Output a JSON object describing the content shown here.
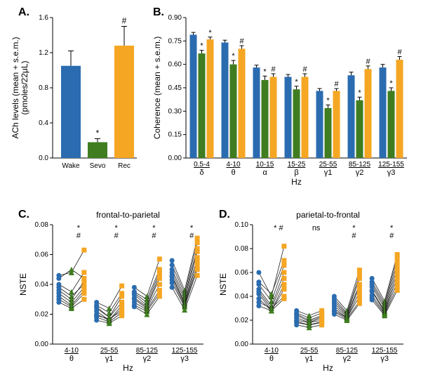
{
  "colors": {
    "wake": "#2b6cb0",
    "sevo": "#3f7d20",
    "rec": "#f5a623",
    "axis": "#000000",
    "bg": "#ffffff",
    "line": "#222222"
  },
  "font": {
    "panel": 16,
    "axis": 12,
    "tick": 10,
    "annot": 12
  },
  "panelA": {
    "label": "A.",
    "ylabel": "ACh levels (mean + s.e.m.)\n(pmoles/22μL)",
    "ylim": [
      0,
      1.6
    ],
    "ytick_step": 0.4,
    "categories": [
      "Wake",
      "Sevo",
      "Rec"
    ],
    "values": [
      1.05,
      0.18,
      1.28
    ],
    "sem": [
      0.17,
      0.04,
      0.22
    ],
    "colors": [
      "#2b6cb0",
      "#3f7d20",
      "#f5a623"
    ],
    "annot": [
      "",
      "*",
      "#"
    ]
  },
  "panelB": {
    "label": "B.",
    "ylabel": "Coherence (mean + s.e.m.)",
    "xlabel": "Hz",
    "ylim": [
      0,
      0.9
    ],
    "ytick_step": 0.15,
    "groups": [
      {
        "top": "0.5-4",
        "bot": "δ"
      },
      {
        "top": "4-10",
        "bot": "θ"
      },
      {
        "top": "10-15",
        "bot": "α"
      },
      {
        "top": "15-25",
        "bot": "β"
      },
      {
        "top": "25-55",
        "bot": "γ1"
      },
      {
        "top": "85-125",
        "bot": "γ2"
      },
      {
        "top": "125-155",
        "bot": "γ3"
      }
    ],
    "series": [
      {
        "name": "Wake",
        "color": "#2b6cb0",
        "values": [
          0.79,
          0.74,
          0.58,
          0.52,
          0.43,
          0.53,
          0.58
        ],
        "sem": [
          0.015,
          0.015,
          0.015,
          0.015,
          0.015,
          0.02,
          0.02
        ],
        "annot": [
          "",
          "",
          "",
          "",
          "",
          "",
          ""
        ]
      },
      {
        "name": "Sevo",
        "color": "#3f7d20",
        "values": [
          0.67,
          0.6,
          0.5,
          0.44,
          0.32,
          0.37,
          0.43
        ],
        "sem": [
          0.02,
          0.025,
          0.025,
          0.02,
          0.02,
          0.02,
          0.02
        ],
        "annot": [
          "*",
          "*",
          "*",
          "*",
          "*",
          "*",
          "*"
        ]
      },
      {
        "name": "Rec",
        "color": "#f5a623",
        "values": [
          0.76,
          0.7,
          0.52,
          0.52,
          0.43,
          0.57,
          0.63
        ],
        "sem": [
          0.015,
          0.02,
          0.02,
          0.02,
          0.015,
          0.02,
          0.02
        ],
        "annot": [
          "*",
          "#",
          "#",
          "#",
          "#",
          "#",
          "#"
        ]
      }
    ]
  },
  "panelC": {
    "label": "C.",
    "title": "frontal-to-parietal",
    "ylabel": "NSTE",
    "xlabel": "Hz",
    "ylim": [
      0,
      0.08
    ],
    "ytick_step": 0.02,
    "groups": [
      {
        "top": "4-10",
        "bot": "θ"
      },
      {
        "top": "25-55",
        "bot": "γ1"
      },
      {
        "top": "85-125",
        "bot": "γ2"
      },
      {
        "top": "125-155",
        "bot": "γ3"
      }
    ],
    "annot_top": [
      "*\n#",
      "*\n#",
      "*\n#",
      "*\n#"
    ],
    "subjects": [
      {
        "w": 0.046,
        "s": 0.048,
        "r": 0.063
      },
      {
        "w": 0.044,
        "s": 0.05,
        "r": 0.044
      },
      {
        "w": 0.04,
        "s": 0.035,
        "r": 0.048
      },
      {
        "w": 0.038,
        "s": 0.032,
        "r": 0.04
      },
      {
        "w": 0.036,
        "s": 0.03,
        "r": 0.042
      },
      {
        "w": 0.034,
        "s": 0.028,
        "r": 0.038
      },
      {
        "w": 0.032,
        "s": 0.026,
        "r": 0.036
      },
      {
        "w": 0.03,
        "s": 0.025,
        "r": 0.034
      },
      {
        "w": 0.028,
        "s": 0.024,
        "r": 0.03
      }
    ],
    "subjects_g": [
      [
        {
          "w": 0.028,
          "s": 0.024,
          "r": 0.039
        },
        {
          "w": 0.026,
          "s": 0.021,
          "r": 0.034
        },
        {
          "w": 0.025,
          "s": 0.018,
          "r": 0.032
        },
        {
          "w": 0.024,
          "s": 0.018,
          "r": 0.028
        },
        {
          "w": 0.022,
          "s": 0.016,
          "r": 0.026
        },
        {
          "w": 0.02,
          "s": 0.016,
          "r": 0.024
        },
        {
          "w": 0.019,
          "s": 0.017,
          "r": 0.022
        },
        {
          "w": 0.018,
          "s": 0.015,
          "r": 0.021
        },
        {
          "w": 0.016,
          "s": 0.014,
          "r": 0.019
        }
      ],
      [
        {
          "w": 0.038,
          "s": 0.032,
          "r": 0.057
        },
        {
          "w": 0.035,
          "s": 0.03,
          "r": 0.05
        },
        {
          "w": 0.034,
          "s": 0.028,
          "r": 0.048
        },
        {
          "w": 0.033,
          "s": 0.026,
          "r": 0.046
        },
        {
          "w": 0.031,
          "s": 0.025,
          "r": 0.044
        },
        {
          "w": 0.03,
          "s": 0.024,
          "r": 0.04
        },
        {
          "w": 0.028,
          "s": 0.023,
          "r": 0.036
        },
        {
          "w": 0.026,
          "s": 0.022,
          "r": 0.034
        },
        {
          "w": 0.025,
          "s": 0.02,
          "r": 0.032
        }
      ],
      [
        {
          "w": 0.056,
          "s": 0.036,
          "r": 0.071
        },
        {
          "w": 0.053,
          "s": 0.034,
          "r": 0.068
        },
        {
          "w": 0.05,
          "s": 0.032,
          "r": 0.064
        },
        {
          "w": 0.048,
          "s": 0.03,
          "r": 0.062
        },
        {
          "w": 0.046,
          "s": 0.028,
          "r": 0.058
        },
        {
          "w": 0.045,
          "s": 0.027,
          "r": 0.055
        },
        {
          "w": 0.043,
          "s": 0.026,
          "r": 0.052
        },
        {
          "w": 0.041,
          "s": 0.025,
          "r": 0.05
        },
        {
          "w": 0.038,
          "s": 0.023,
          "r": 0.046
        }
      ]
    ]
  },
  "panelD": {
    "label": "D.",
    "title": "parietal-to-frontal",
    "ylabel": "NSTE",
    "xlabel": "Hz",
    "ylim": [
      0,
      0.1
    ],
    "ytick_step": 0.02,
    "groups": [
      {
        "top": "4-10",
        "bot": "θ"
      },
      {
        "top": "25-55",
        "bot": "γ1"
      },
      {
        "top": "85-125",
        "bot": "γ2"
      },
      {
        "top": "125-155",
        "bot": "γ3"
      }
    ],
    "annot_top": [
      "*  #",
      "ns",
      "*\n#",
      "*\n#"
    ],
    "subjects": [
      {
        "w": 0.06,
        "s": 0.04,
        "r": 0.082
      },
      {
        "w": 0.052,
        "s": 0.042,
        "r": 0.07
      },
      {
        "w": 0.05,
        "s": 0.036,
        "r": 0.066
      },
      {
        "w": 0.046,
        "s": 0.032,
        "r": 0.06
      },
      {
        "w": 0.044,
        "s": 0.03,
        "r": 0.055
      },
      {
        "w": 0.042,
        "s": 0.028,
        "r": 0.05
      },
      {
        "w": 0.038,
        "s": 0.028,
        "r": 0.046
      },
      {
        "w": 0.035,
        "s": 0.03,
        "r": 0.04
      },
      {
        "w": 0.032,
        "s": 0.028,
        "r": 0.038
      }
    ],
    "subjects_g": [
      [
        {
          "w": 0.028,
          "s": 0.024,
          "r": 0.028
        },
        {
          "w": 0.026,
          "s": 0.022,
          "r": 0.026
        },
        {
          "w": 0.025,
          "s": 0.02,
          "r": 0.024
        },
        {
          "w": 0.024,
          "s": 0.019,
          "r": 0.023
        },
        {
          "w": 0.022,
          "s": 0.018,
          "r": 0.022
        },
        {
          "w": 0.02,
          "s": 0.018,
          "r": 0.02
        },
        {
          "w": 0.019,
          "s": 0.016,
          "r": 0.019
        },
        {
          "w": 0.018,
          "s": 0.016,
          "r": 0.018
        },
        {
          "w": 0.016,
          "s": 0.014,
          "r": 0.016
        }
      ],
      [
        {
          "w": 0.04,
          "s": 0.028,
          "r": 0.062
        },
        {
          "w": 0.038,
          "s": 0.026,
          "r": 0.058
        },
        {
          "w": 0.036,
          "s": 0.025,
          "r": 0.055
        },
        {
          "w": 0.034,
          "s": 0.024,
          "r": 0.05
        },
        {
          "w": 0.032,
          "s": 0.023,
          "r": 0.048
        },
        {
          "w": 0.03,
          "s": 0.022,
          "r": 0.044
        },
        {
          "w": 0.028,
          "s": 0.022,
          "r": 0.04
        },
        {
          "w": 0.027,
          "s": 0.021,
          "r": 0.036
        },
        {
          "w": 0.025,
          "s": 0.02,
          "r": 0.034
        }
      ],
      [
        {
          "w": 0.055,
          "s": 0.036,
          "r": 0.075
        },
        {
          "w": 0.052,
          "s": 0.034,
          "r": 0.072
        },
        {
          "w": 0.05,
          "s": 0.032,
          "r": 0.068
        },
        {
          "w": 0.048,
          "s": 0.03,
          "r": 0.064
        },
        {
          "w": 0.045,
          "s": 0.028,
          "r": 0.06
        },
        {
          "w": 0.044,
          "s": 0.027,
          "r": 0.056
        },
        {
          "w": 0.041,
          "s": 0.026,
          "r": 0.052
        },
        {
          "w": 0.039,
          "s": 0.025,
          "r": 0.048
        },
        {
          "w": 0.037,
          "s": 0.024,
          "r": 0.045
        }
      ]
    ]
  }
}
